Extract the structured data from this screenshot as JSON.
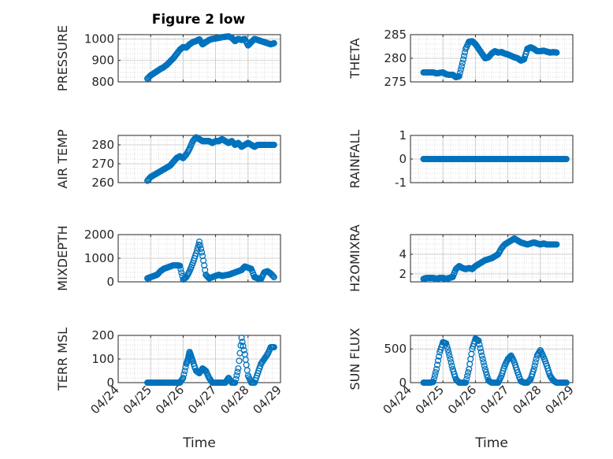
{
  "figure_title": "Figure 2 low",
  "chart_data": [
    {
      "type": "scatter",
      "id": "pressure",
      "ylabel": "PRESSURE",
      "title": "Figure 2 low",
      "xlabel": "",
      "ylim": [
        800,
        1020
      ],
      "yticks": [
        800,
        900,
        1000
      ],
      "xlim": [
        "04/24",
        "04/29"
      ],
      "xticks": [],
      "grid": true,
      "x": [
        0.9,
        1.0,
        1.1,
        1.2,
        1.3,
        1.4,
        1.5,
        1.6,
        1.7,
        1.8,
        1.9,
        2.0,
        2.1,
        2.2,
        2.3,
        2.4,
        2.5,
        2.6,
        2.7,
        2.8,
        2.9,
        3.0,
        3.1,
        3.2,
        3.3,
        3.4,
        3.5,
        3.6,
        3.7,
        3.8,
        3.9,
        4.0,
        4.1,
        4.2,
        4.3,
        4.4,
        4.5,
        4.6,
        4.7,
        4.8
      ],
      "y": [
        815,
        830,
        840,
        850,
        860,
        868,
        880,
        895,
        910,
        930,
        950,
        962,
        960,
        975,
        985,
        990,
        998,
        975,
        985,
        995,
        1000,
        1002,
        1005,
        1008,
        1010,
        1012,
        1005,
        990,
        1000,
        995,
        1000,
        970,
        985,
        1000,
        995,
        990,
        985,
        980,
        975,
        980
      ]
    },
    {
      "type": "scatter",
      "id": "theta",
      "ylabel": "THETA",
      "xlabel": "",
      "ylim": [
        275,
        285
      ],
      "yticks": [
        275,
        280,
        285
      ],
      "xlim": [
        "04/24",
        "04/29"
      ],
      "xticks": [],
      "grid": true,
      "x": [
        0.4,
        0.5,
        0.6,
        0.7,
        0.8,
        0.9,
        1.0,
        1.1,
        1.2,
        1.3,
        1.4,
        1.5,
        1.6,
        1.7,
        1.8,
        1.9,
        2.0,
        2.1,
        2.2,
        2.3,
        2.4,
        2.5,
        2.6,
        2.7,
        2.8,
        2.9,
        3.0,
        3.1,
        3.2,
        3.3,
        3.4,
        3.5,
        3.6,
        3.7,
        3.8,
        3.9,
        4.0,
        4.1,
        4.2,
        4.3,
        4.4,
        4.5
      ],
      "y": [
        277,
        277,
        277,
        277,
        276.8,
        276.9,
        277,
        276.6,
        276.5,
        276.5,
        276,
        276.2,
        279,
        282,
        283.5,
        283.6,
        283,
        282,
        281,
        280,
        280.2,
        281,
        281.5,
        281.2,
        281.3,
        281,
        280.8,
        280.5,
        280.2,
        280,
        279.5,
        279.8,
        282,
        282.3,
        282,
        281.5,
        281.5,
        281.6,
        281.4,
        281.2,
        281.3,
        281.2
      ]
    },
    {
      "type": "scatter",
      "id": "air_temp",
      "ylabel": "AIR_TEMP",
      "xlabel": "",
      "ylim": [
        260,
        285
      ],
      "yticks": [
        260,
        270,
        280
      ],
      "xlim": [
        "04/24",
        "04/29"
      ],
      "xticks": [],
      "grid": true,
      "x": [
        0.9,
        1.0,
        1.1,
        1.2,
        1.3,
        1.4,
        1.5,
        1.6,
        1.7,
        1.8,
        1.9,
        2.0,
        2.1,
        2.2,
        2.3,
        2.4,
        2.5,
        2.6,
        2.7,
        2.8,
        2.9,
        3.0,
        3.1,
        3.2,
        3.3,
        3.4,
        3.5,
        3.6,
        3.7,
        3.8,
        3.9,
        4.0,
        4.1,
        4.2,
        4.3,
        4.4,
        4.5,
        4.6,
        4.7,
        4.8
      ],
      "y": [
        261,
        263,
        264,
        265,
        266,
        267,
        268,
        269,
        271,
        273,
        274,
        273,
        275,
        278,
        282,
        284,
        283,
        282,
        282,
        282,
        281,
        282,
        282,
        283,
        282,
        281,
        282,
        280,
        281,
        279,
        280,
        281,
        280,
        279,
        280,
        280,
        280,
        280,
        280,
        280
      ]
    },
    {
      "type": "scatter",
      "id": "rainfall",
      "ylabel": "RAINFALL",
      "xlabel": "",
      "ylim": [
        -1,
        1
      ],
      "yticks": [
        -1,
        0,
        1
      ],
      "xlim": [
        "04/24",
        "04/29"
      ],
      "xticks": [],
      "grid": true,
      "x": [
        0.4,
        0.5,
        0.6,
        0.7,
        0.8,
        0.9,
        1.0,
        1.1,
        1.2,
        1.3,
        1.4,
        1.5,
        1.6,
        1.7,
        1.8,
        1.9,
        2.0,
        2.1,
        2.2,
        2.3,
        2.4,
        2.5,
        2.6,
        2.7,
        2.8,
        2.9,
        3.0,
        3.1,
        3.2,
        3.3,
        3.4,
        3.5,
        3.6,
        3.7,
        3.8,
        3.9,
        4.0,
        4.1,
        4.2,
        4.3,
        4.4,
        4.5,
        4.6,
        4.7,
        4.8
      ],
      "y": [
        0,
        0,
        0,
        0,
        0,
        0,
        0,
        0,
        0,
        0,
        0,
        0,
        0,
        0,
        0,
        0,
        0,
        0,
        0,
        0,
        0,
        0,
        0,
        0,
        0,
        0,
        0,
        0,
        0,
        0,
        0,
        0,
        0,
        0,
        0,
        0,
        0,
        0,
        0,
        0,
        0,
        0,
        0,
        0,
        0
      ]
    },
    {
      "type": "scatter",
      "id": "mixdepth",
      "ylabel": "MIXDEPTH",
      "xlabel": "",
      "ylim": [
        0,
        2000
      ],
      "yticks": [
        0,
        1000,
        2000
      ],
      "xlim": [
        "04/24",
        "04/29"
      ],
      "xticks": [],
      "grid": true,
      "x": [
        0.9,
        1.0,
        1.1,
        1.2,
        1.3,
        1.4,
        1.5,
        1.6,
        1.7,
        1.8,
        1.9,
        2.0,
        2.1,
        2.2,
        2.3,
        2.4,
        2.5,
        2.6,
        2.7,
        2.8,
        2.9,
        3.0,
        3.1,
        3.2,
        3.3,
        3.4,
        3.5,
        3.6,
        3.7,
        3.8,
        3.9,
        4.0,
        4.1,
        4.2,
        4.3,
        4.4,
        4.5,
        4.6,
        4.7,
        4.8
      ],
      "y": [
        150,
        200,
        250,
        300,
        450,
        550,
        600,
        650,
        700,
        700,
        680,
        100,
        200,
        450,
        800,
        1200,
        1700,
        1100,
        300,
        150,
        200,
        250,
        300,
        250,
        280,
        300,
        350,
        400,
        450,
        500,
        650,
        600,
        550,
        200,
        150,
        120,
        400,
        450,
        350,
        200
      ]
    },
    {
      "type": "scatter",
      "id": "h2omixra",
      "ylabel": "H2OMIXRA",
      "xlabel": "",
      "ylim": [
        1.2,
        6
      ],
      "yticks": [
        2,
        4
      ],
      "xlim": [
        "04/24",
        "04/29"
      ],
      "xticks": [],
      "grid": true,
      "x": [
        0.4,
        0.5,
        0.6,
        0.7,
        0.8,
        0.9,
        1.0,
        1.1,
        1.2,
        1.3,
        1.4,
        1.5,
        1.6,
        1.7,
        1.8,
        1.9,
        2.0,
        2.1,
        2.2,
        2.3,
        2.4,
        2.5,
        2.6,
        2.7,
        2.8,
        2.9,
        3.0,
        3.1,
        3.2,
        3.3,
        3.4,
        3.5,
        3.6,
        3.7,
        3.8,
        3.9,
        4.0,
        4.1,
        4.2,
        4.3,
        4.4,
        4.5
      ],
      "y": [
        1.5,
        1.6,
        1.6,
        1.6,
        1.5,
        1.6,
        1.6,
        1.5,
        1.6,
        1.7,
        2.5,
        2.8,
        2.6,
        2.5,
        2.6,
        2.5,
        2.8,
        3.0,
        3.2,
        3.4,
        3.5,
        3.6,
        3.8,
        4.0,
        4.6,
        5.0,
        5.2,
        5.4,
        5.6,
        5.4,
        5.2,
        5.1,
        5.0,
        5.1,
        5.2,
        5.1,
        5.0,
        5.1,
        5.0,
        5.0,
        5.0,
        5.0
      ]
    },
    {
      "type": "scatter",
      "id": "terr_msl",
      "ylabel": "TERR_MSL",
      "xlabel": "Time",
      "ylim": [
        0,
        200
      ],
      "yticks": [
        0,
        100,
        200
      ],
      "xlim": [
        "04/24",
        "04/29"
      ],
      "xticks": [
        "04/24",
        "04/25",
        "04/26",
        "04/27",
        "04/28",
        "04/29"
      ],
      "grid": true,
      "x": [
        0.9,
        1.0,
        1.1,
        1.2,
        1.3,
        1.4,
        1.5,
        1.6,
        1.7,
        1.8,
        1.9,
        2.0,
        2.1,
        2.15,
        2.2,
        2.25,
        2.3,
        2.4,
        2.5,
        2.6,
        2.7,
        2.8,
        2.9,
        3.0,
        3.1,
        3.2,
        3.3,
        3.4,
        3.5,
        3.6,
        3.7,
        3.8,
        3.9,
        4.0,
        4.1,
        4.2,
        4.3,
        4.4,
        4.5,
        4.6,
        4.7,
        4.8
      ],
      "y": [
        0,
        0,
        0,
        0,
        0,
        0,
        0,
        0,
        0,
        0,
        0,
        20,
        80,
        100,
        130,
        110,
        90,
        50,
        40,
        60,
        50,
        20,
        0,
        0,
        0,
        0,
        0,
        20,
        0,
        0,
        60,
        190,
        120,
        30,
        0,
        0,
        40,
        80,
        100,
        120,
        150,
        150
      ]
    },
    {
      "type": "scatter",
      "id": "sun_flux",
      "ylabel": "SUN_FLUX",
      "xlabel": "Time",
      "ylim": [
        0,
        700
      ],
      "yticks": [
        0,
        500
      ],
      "xlim": [
        "04/24",
        "04/29"
      ],
      "xticks": [
        "04/24",
        "04/25",
        "04/26",
        "04/27",
        "04/28",
        "04/29"
      ],
      "grid": true,
      "x": [
        0.4,
        0.5,
        0.6,
        0.7,
        0.8,
        0.9,
        1.0,
        1.1,
        1.2,
        1.3,
        1.4,
        1.5,
        1.6,
        1.7,
        1.8,
        1.9,
        2.0,
        2.1,
        2.2,
        2.3,
        2.4,
        2.5,
        2.6,
        2.7,
        2.8,
        2.9,
        3.0,
        3.1,
        3.2,
        3.3,
        3.4,
        3.5,
        3.6,
        3.7,
        3.8,
        3.9,
        4.0,
        4.1,
        4.2,
        4.3,
        4.4,
        4.5,
        4.6,
        4.7,
        4.8
      ],
      "y": [
        0,
        0,
        0,
        10,
        200,
        450,
        600,
        580,
        400,
        200,
        50,
        0,
        0,
        0,
        200,
        500,
        650,
        620,
        400,
        200,
        30,
        0,
        0,
        0,
        100,
        250,
        350,
        400,
        300,
        150,
        20,
        0,
        0,
        50,
        200,
        400,
        480,
        380,
        250,
        100,
        30,
        0,
        0,
        0,
        0
      ]
    }
  ]
}
